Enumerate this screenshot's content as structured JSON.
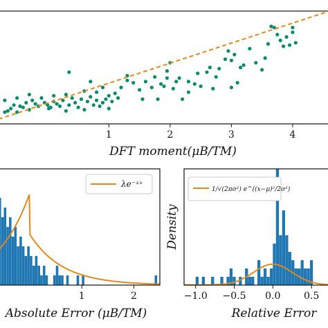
{
  "chart_data": [
    {
      "type": "scatter",
      "xlabel": "DFT moment(μB/TM)",
      "xticks": [
        "1",
        "2",
        "3",
        "4"
      ],
      "xlim": [
        -0.8,
        4.6
      ],
      "ylim": [
        -0.2,
        4.6
      ],
      "fit_line": {
        "style": "dashed",
        "color": "#e08a1e",
        "x": [
          -0.8,
          4.6
        ],
        "y": [
          0.0,
          4.6
        ]
      },
      "points_color": "#0b8a6a",
      "points": [
        [
          -0.7,
          0.3
        ],
        [
          -0.65,
          0.35
        ],
        [
          -0.6,
          0.45
        ],
        [
          -0.55,
          0.6
        ],
        [
          -0.5,
          0.3
        ],
        [
          -0.45,
          0.55
        ],
        [
          -0.4,
          0.5
        ],
        [
          -0.35,
          0.7
        ],
        [
          -0.3,
          0.4
        ],
        [
          -0.25,
          0.8
        ],
        [
          -0.2,
          0.65
        ],
        [
          -0.15,
          0.55
        ],
        [
          -0.1,
          0.9
        ],
        [
          -0.05,
          0.7
        ],
        [
          0.0,
          0.6
        ],
        [
          0.02,
          0.45
        ],
        [
          0.05,
          0.5
        ],
        [
          0.1,
          0.75
        ],
        [
          0.15,
          0.65
        ],
        [
          0.2,
          0.55
        ],
        [
          0.25,
          0.8
        ],
        [
          0.3,
          0.35
        ],
        [
          0.35,
          0.6
        ],
        [
          0.4,
          0.9
        ],
        [
          0.45,
          0.7
        ],
        [
          0.5,
          0.5
        ],
        [
          0.55,
          0.85
        ],
        [
          0.6,
          0.4
        ],
        [
          0.65,
          0.75
        ],
        [
          0.7,
          0.95
        ],
        [
          0.75,
          0.6
        ],
        [
          0.8,
          0.8
        ],
        [
          0.85,
          0.55
        ],
        [
          0.9,
          0.7
        ],
        [
          0.95,
          0.85
        ],
        [
          1.0,
          1.0
        ],
        [
          1.0,
          0.45
        ],
        [
          1.05,
          0.75
        ],
        [
          1.1,
          1.1
        ],
        [
          1.15,
          0.9
        ],
        [
          -0.7,
          0.8
        ],
        [
          -0.5,
          0.9
        ],
        [
          -0.3,
          1.05
        ],
        [
          0.1,
          1.0
        ],
        [
          0.3,
          1.05
        ],
        [
          0.6,
          1.2
        ],
        [
          0.8,
          1.15
        ],
        [
          0.35,
          2.0
        ],
        [
          0.7,
          1.6
        ],
        [
          0.9,
          1.35
        ],
        [
          1.2,
          1.35
        ],
        [
          1.3,
          1.65
        ],
        [
          1.4,
          1.55
        ],
        [
          1.5,
          1.25
        ],
        [
          1.55,
          0.85
        ],
        [
          1.6,
          1.6
        ],
        [
          1.7,
          1.35
        ],
        [
          1.75,
          1.8
        ],
        [
          1.8,
          0.85
        ],
        [
          1.85,
          1.5
        ],
        [
          1.9,
          1.4
        ],
        [
          1.95,
          2.05
        ],
        [
          1.95,
          1.75
        ],
        [
          2.0,
          2.4
        ],
        [
          2.05,
          1.3
        ],
        [
          2.1,
          1.6
        ],
        [
          2.15,
          1.75
        ],
        [
          2.2,
          0.85
        ],
        [
          2.3,
          1.6
        ],
        [
          2.4,
          1.5
        ],
        [
          2.5,
          1.4
        ],
        [
          2.6,
          2.0
        ],
        [
          2.65,
          2.2
        ],
        [
          2.7,
          1.3
        ],
        [
          2.75,
          1.8
        ],
        [
          2.8,
          2.15
        ],
        [
          2.9,
          2.55
        ],
        [
          2.95,
          2.9
        ],
        [
          3.0,
          2.5
        ],
        [
          3.0,
          1.35
        ],
        [
          3.05,
          2.75
        ],
        [
          3.1,
          1.55
        ],
        [
          3.15,
          2.2
        ],
        [
          3.2,
          2.3
        ],
        [
          3.3,
          3.0
        ],
        [
          3.4,
          2.4
        ],
        [
          3.5,
          2.1
        ],
        [
          3.55,
          2.6
        ],
        [
          3.6,
          3.2
        ],
        [
          3.7,
          3.9
        ],
        [
          3.75,
          3.6
        ],
        [
          3.8,
          3.35
        ],
        [
          3.9,
          3.5
        ],
        [
          3.95,
          3.15
        ],
        [
          4.0,
          3.9
        ],
        [
          4.0,
          3.7
        ],
        [
          4.05,
          3.25
        ],
        [
          3.65,
          3.95
        ],
        [
          3.85,
          3.1
        ],
        [
          1.3,
          1.85
        ],
        [
          2.3,
          1.15
        ],
        [
          2.45,
          1.95
        ]
      ]
    },
    {
      "type": "histogram",
      "xlabel": "Absolute Error (μB/TM)",
      "xticks": [
        "1",
        "2"
      ],
      "xlim": [
        -0.6,
        2.5
      ],
      "legend": {
        "label": "λe⁻ᶫˣ",
        "position": "top-right"
      },
      "bar_color": "#1f77b4",
      "curve_color": "#e08a1e",
      "bins_start": -0.6,
      "bin_width": 0.05,
      "counts": [
        9,
        7,
        8,
        6,
        7,
        5,
        6,
        4,
        5,
        4,
        3,
        4,
        3,
        2,
        3,
        2,
        1,
        2,
        1,
        0,
        0,
        1,
        2,
        1,
        1,
        0,
        1,
        0,
        0,
        0,
        1,
        0,
        1,
        0,
        0,
        0,
        0,
        0,
        0,
        0,
        0,
        0,
        0,
        0,
        0,
        0,
        0,
        0,
        0,
        0,
        0,
        0,
        0,
        0,
        0,
        0,
        0,
        0,
        0,
        0,
        1,
        0
      ],
      "curve": {
        "lambda": 1.6,
        "scale": 9.5
      }
    },
    {
      "type": "histogram",
      "xlabel": "Relative Error",
      "ylabel": "Density",
      "xticks": [
        "−1.0",
        "−0.5",
        "0.0",
        "0.5"
      ],
      "xlim": [
        -1.15,
        0.75
      ],
      "legend": {
        "label": "1/√(2πσ²) e^((x−μ)²/2σ²)",
        "position": "top-left"
      },
      "bar_color": "#1f77b4",
      "curve_color": "#e08a1e",
      "bins_start": -1.0,
      "bin_width": 0.04,
      "counts": [
        1,
        0,
        1,
        0,
        0,
        1,
        0,
        0,
        1,
        0,
        1,
        2,
        1,
        0,
        1,
        0,
        2,
        1,
        1,
        0,
        3,
        1,
        2,
        1,
        2,
        5,
        14,
        6,
        9,
        6,
        4,
        3,
        2,
        2,
        3,
        2,
        2,
        3
      ],
      "curve": {
        "mu": 0.0,
        "sigma": 0.25,
        "scale": 2.5
      }
    }
  ]
}
